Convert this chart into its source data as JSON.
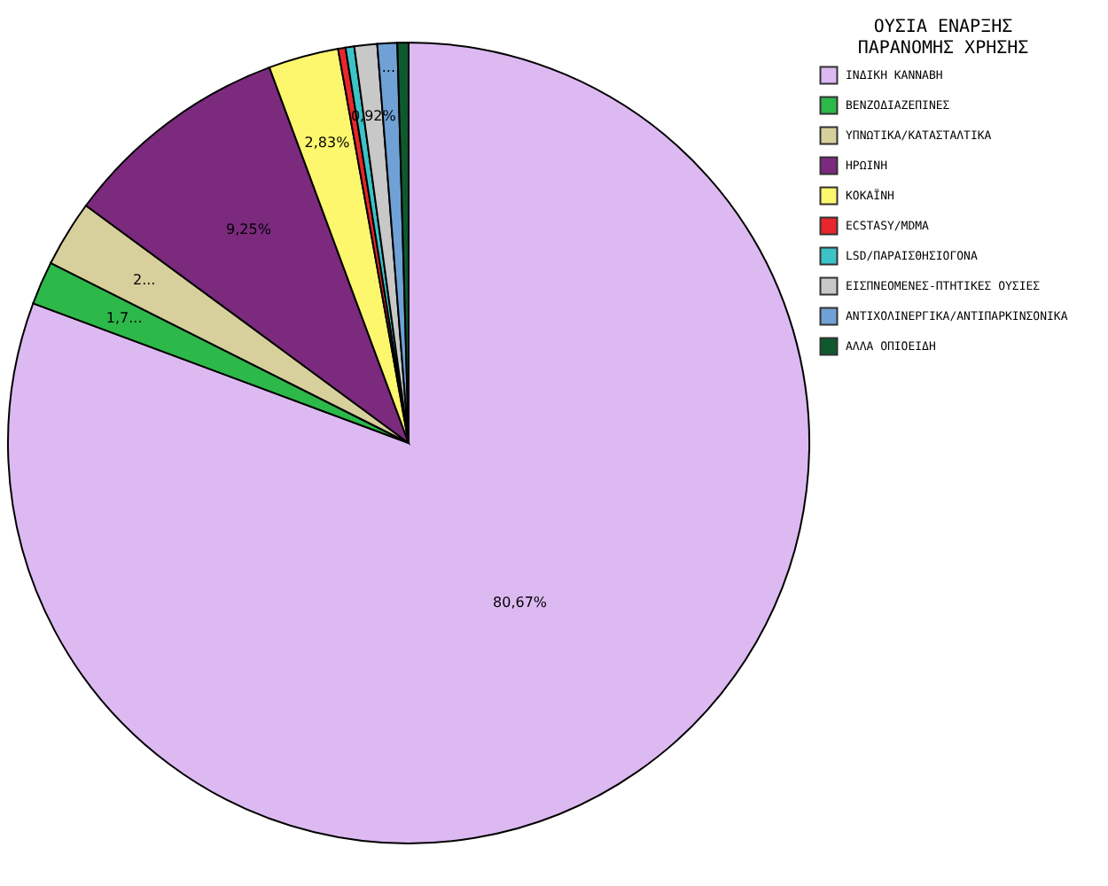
{
  "chart_data": {
    "type": "pie",
    "legend_title": "ΟΥΣΙΑ ΕΝΑΡΞΗΣ ΠΑΡΑΝΟΜΗΣ ΧΡΗΣΗΣ",
    "categories": [
      "ΙΝΔΙΚΗ ΚΑΝΝΑΒΗ",
      "ΒΕΝΖΟΔΙΑΖΕΠΙΝΕΣ",
      "ΥΠΝΩΤΙΚΑ/ΚΑΤΑΣΤΑΛΤΙΚΑ",
      "ΗΡΩΙΝΗ",
      "ΚΟΚΑΪΝΗ",
      "ECSTASY/MDMA",
      "LSD/ΠΑΡΑΙΣΘΗΣΙΟΓΟΝΑ",
      "ΕΙΣΠΝΕΟΜΕΝΕΣ-ΠΤΗΤΙΚΕΣ ΟΥΣΙΕΣ",
      "ΑΝΤΙΧΟΛΙΝΕΡΓΙΚΑ/ΑΝΤΙΠΑΡΚΙΝΣΟΝΙΚΑ",
      "ΑΛΛΑ ΟΠΙΟΕΙΔΗ"
    ],
    "values": [
      80.67,
      1.75,
      2.68,
      9.25,
      2.83,
      0.3,
      0.35,
      0.92,
      0.8,
      0.45
    ],
    "colors": [
      "#ddb9f2",
      "#2db84a",
      "#d8d09c",
      "#7b2a7e",
      "#fdf76e",
      "#e8262b",
      "#3cc3c7",
      "#c8c8c8",
      "#6fa1d6",
      "#0e5a2e"
    ],
    "value_labels": [
      "80,67%",
      "1,7...",
      "2...",
      "9,25%",
      "2,83%",
      null,
      null,
      "0,92%",
      "...",
      null
    ],
    "legend": "top right"
  }
}
